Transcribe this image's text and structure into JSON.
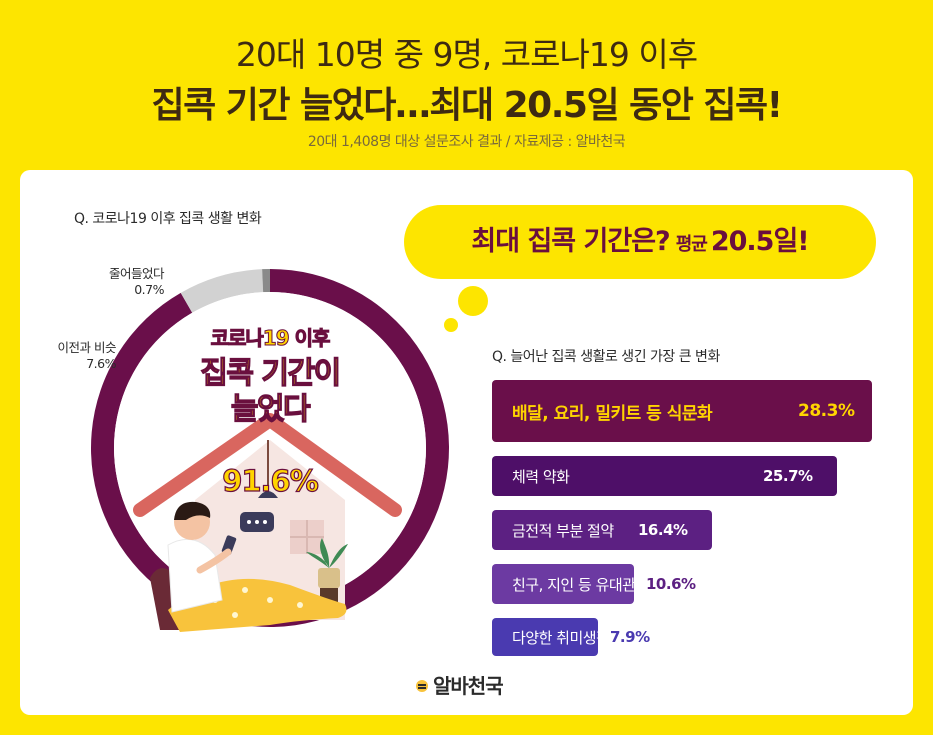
{
  "header": {
    "title_line1": "20대 10명 중 9명, 코로나19 이후",
    "title_line2": "집콕 기간 늘었다…최대 20.5일 동안 집콕!",
    "source": "20대 1,408명 대상 설문조사 결과 / 자료제공 : 알바천국"
  },
  "donut_section": {
    "question": "Q. 코로나19 이후 집콕 생활 변화",
    "center_line1": "코로나19 이후",
    "center_line2a": "집콕 기간이",
    "center_line2b": "늘었다",
    "center_value": "91.6%",
    "labels": {
      "decreased_name": "줄어들었다",
      "decreased_value": "0.7%",
      "same_name": "이전과 비슷",
      "same_value": "7.6%"
    }
  },
  "bubble": {
    "question": "최대 집콕 기간은?",
    "avg_label": "평균",
    "avg_value": "20.5일!"
  },
  "bar_section": {
    "question": "Q. 늘어난 집콕 생활로 생긴 가장 큰 변화"
  },
  "chart_data": [
    {
      "type": "pie",
      "variant": "donut",
      "title": "Q. 코로나19 이후 집콕 생활 변화",
      "slices": [
        {
          "name": "늘었다",
          "value": 91.6,
          "color": "#6a0f4a"
        },
        {
          "name": "이전과 비슷",
          "value": 7.6,
          "color": "#d2d2d2"
        },
        {
          "name": "줄어들었다",
          "value": 0.7,
          "color": "#8a8a8a"
        }
      ]
    },
    {
      "type": "bar",
      "orientation": "horizontal",
      "title": "Q. 늘어난 집콕 생활로 생긴 가장 큰 변화",
      "categories": [
        "배달, 요리, 밀키트 등 식문화",
        "체력 약화",
        "금전적 부분 절약",
        "친구, 지인 등 유대관계 약화",
        "다양한 취미생활 개발"
      ],
      "values": [
        28.3,
        25.7,
        16.4,
        10.6,
        7.9
      ],
      "value_labels": [
        "28.3%",
        "25.7%",
        "16.4%",
        "10.6%",
        "7.9%"
      ],
      "colors": [
        "#6a0f4a",
        "#4e0f68",
        "#5c2082",
        "#6c3aa2",
        "#4a3ab0"
      ],
      "value_colors": [
        "#ffd400",
        "#ffffff",
        "#ffffff",
        "#5c2082",
        "#4a3ab0"
      ],
      "xlim": [
        0,
        28.3
      ]
    }
  ],
  "logo": {
    "text": "알바천국"
  }
}
